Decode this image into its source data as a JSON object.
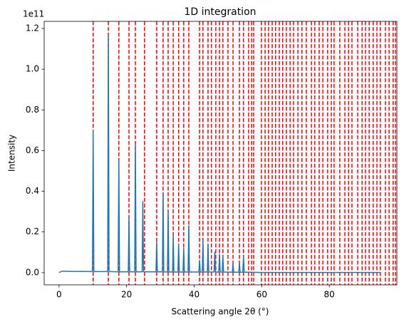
{
  "chart_data": {
    "type": "line",
    "title": "1D integration",
    "x_label": "Scattering angle 2θ (°)",
    "y_label": "Intensity",
    "y_offset_label": "1e11",
    "xlim": [
      -4.4,
      100
    ],
    "ylim": [
      -0.06,
      1.235
    ],
    "xticks": [
      0,
      20,
      40,
      60,
      80
    ],
    "yticks": [
      {
        "value": 0,
        "label": "0.0"
      },
      {
        "value": 0.2,
        "label": "0.2"
      },
      {
        "value": 0.4,
        "label": "0.4"
      },
      {
        "value": 0.6,
        "label": "0.6"
      },
      {
        "value": 0.8,
        "label": "0.8"
      },
      {
        "value": 1.0,
        "label": "1.0"
      },
      {
        "value": 1.2,
        "label": "1.2"
      }
    ],
    "grid": false,
    "series": [
      {
        "color": "#1f77b4",
        "x": [
          0,
          0.8,
          1.5,
          3,
          5,
          9.9,
          10.1,
          10.3,
          14.4,
          14.6,
          14.8,
          17.5,
          17.7,
          17.9,
          20.5,
          20.7,
          20.9,
          22.4,
          22.6,
          22.8,
          24.6,
          24.8,
          25.0,
          28.7,
          28.9,
          29.1,
          30.6,
          30.8,
          31.0,
          32.1,
          32.3,
          32.5,
          33.6,
          33.8,
          34.0,
          35.2,
          35.4,
          35.6,
          36.7,
          36.9,
          37.1,
          38.2,
          38.4,
          38.6,
          41.4,
          41.6,
          41.8,
          42.4,
          42.6,
          42.8,
          43.9,
          44.1,
          44.3,
          45.9,
          46.1,
          46.3,
          47.3,
          47.5,
          47.7,
          48.3,
          48.5,
          48.7,
          51.3,
          51.5,
          51.7,
          53.2,
          53.4,
          53.6,
          54.4,
          54.6,
          54.8,
          56,
          60,
          70,
          80,
          90,
          95
        ],
        "values": [
          0,
          0.007,
          0.007,
          0.006,
          0.006,
          0.005,
          0.7,
          0.005,
          0.005,
          1.17,
          0.005,
          0.004,
          0.55,
          0.004,
          0.004,
          0.27,
          0.004,
          0.004,
          0.63,
          0.004,
          0.004,
          0.35,
          0.004,
          0.004,
          0.15,
          0.004,
          0.004,
          0.39,
          0.004,
          0.003,
          0.3,
          0.003,
          0.003,
          0.18,
          0.003,
          0.003,
          0.14,
          0.003,
          0.003,
          0.12,
          0.003,
          0.003,
          0.23,
          0.003,
          0.003,
          0.06,
          0.003,
          0.003,
          0.16,
          0.003,
          0.003,
          0.14,
          0.003,
          0.003,
          0.1,
          0.003,
          0.003,
          0.09,
          0.003,
          0.003,
          0.08,
          0.003,
          0.002,
          0.045,
          0.002,
          0.002,
          0.045,
          0.002,
          0.002,
          0.08,
          0.002,
          0.002,
          0.001,
          0.001,
          0.001,
          0.001,
          0.001
        ]
      }
    ],
    "reference_lines": {
      "color": "#ff0000",
      "style": "dashed",
      "x": [
        10.1,
        14.6,
        17.7,
        20.7,
        22.6,
        25.3,
        28.9,
        30.8,
        32.3,
        33.8,
        35.4,
        36.9,
        38.4,
        41.6,
        42.6,
        44.1,
        45.1,
        46.4,
        47.5,
        48.5,
        50.0,
        51.5,
        53.4,
        54.6,
        56.1,
        57.0,
        57.6,
        59.9,
        61.0,
        62.0,
        63.1,
        64.1,
        65.2,
        66.2,
        67.3,
        68.4,
        69.4,
        70.7,
        71.9,
        73.2,
        74.7,
        75.7,
        77.0,
        78.1,
        79.5,
        80.6,
        81.4,
        83.1,
        84.6,
        85.7,
        86.7,
        88.4,
        89.7,
        90.7,
        91.8,
        93.0,
        94.1,
        95.1,
        96.6,
        97.7,
        98.9,
        99.6
      ]
    }
  }
}
